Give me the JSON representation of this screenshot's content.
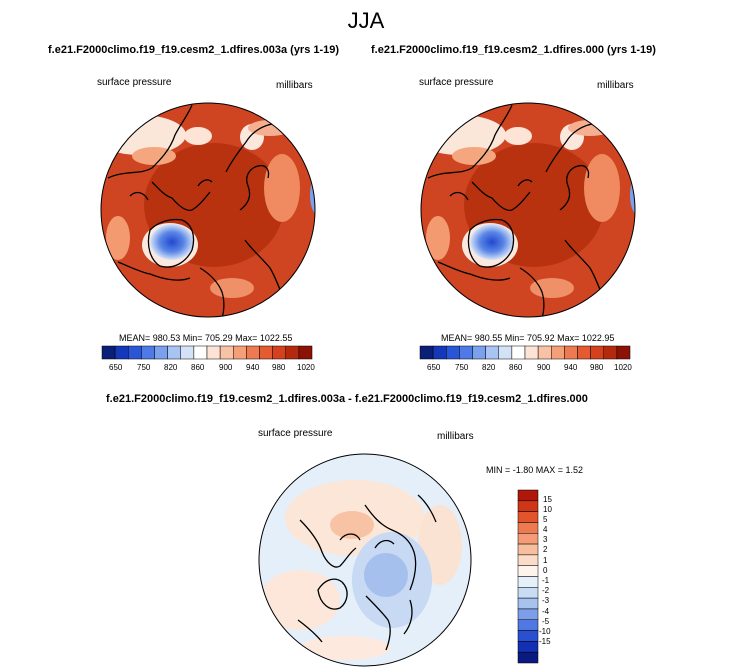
{
  "season": "JJA",
  "panels": [
    {
      "title": "f.e21.F2000climo.f19_f19.cesm2_1.dfires.003a (yrs 1-19)",
      "left_label": "surface pressure",
      "right_label": "millibars",
      "stats": "MEAN= 980.53  Min= 705.29  Max= 1022.55"
    },
    {
      "title": "f.e21.F2000climo.f19_f19.cesm2_1.dfires.000 (yrs 1-19)",
      "left_label": "surface pressure",
      "right_label": "millibars",
      "stats": "MEAN= 980.55  Min= 705.92  Max= 1022.95"
    }
  ],
  "abs_colorbar": {
    "colors": [
      "#0a1f78",
      "#1538b8",
      "#2a55d9",
      "#4d7ae6",
      "#7aa0ee",
      "#a8c4f3",
      "#d4e2f8",
      "#ffffff",
      "#fde3d5",
      "#f9c2a4",
      "#f59f79",
      "#ee7a51",
      "#e45a31",
      "#d4411c",
      "#b52a0f",
      "#8b1205"
    ],
    "tick_labels": [
      "650",
      "750",
      "820",
      "860",
      "900",
      "940",
      "980",
      "1020"
    ]
  },
  "diff": {
    "title": "f.e21.F2000climo.f19_f19.cesm2_1.dfires.003a - f.e21.F2000climo.f19_f19.cesm2_1.dfires.000",
    "left_label": "surface pressure",
    "right_label": "millibars",
    "stats": "MIN = -1.80 MAX =   1.52",
    "colorbar": {
      "colors": [
        "#b0170b",
        "#cf3517",
        "#e2552c",
        "#ee7a50",
        "#f49c77",
        "#f8bea0",
        "#fbdcc8",
        "#fff4ec",
        "#e6f0fa",
        "#c9dcf3",
        "#a7c2ee",
        "#7d9fe9",
        "#4f78e2",
        "#2950d3",
        "#1230b2",
        "#0a1a80"
      ],
      "tick_labels": [
        "15",
        "10",
        "5",
        "4",
        "3",
        "2",
        "1",
        "0",
        "-1",
        "-2",
        "-3",
        "-4",
        "-5",
        "-10",
        "-15"
      ]
    }
  }
}
